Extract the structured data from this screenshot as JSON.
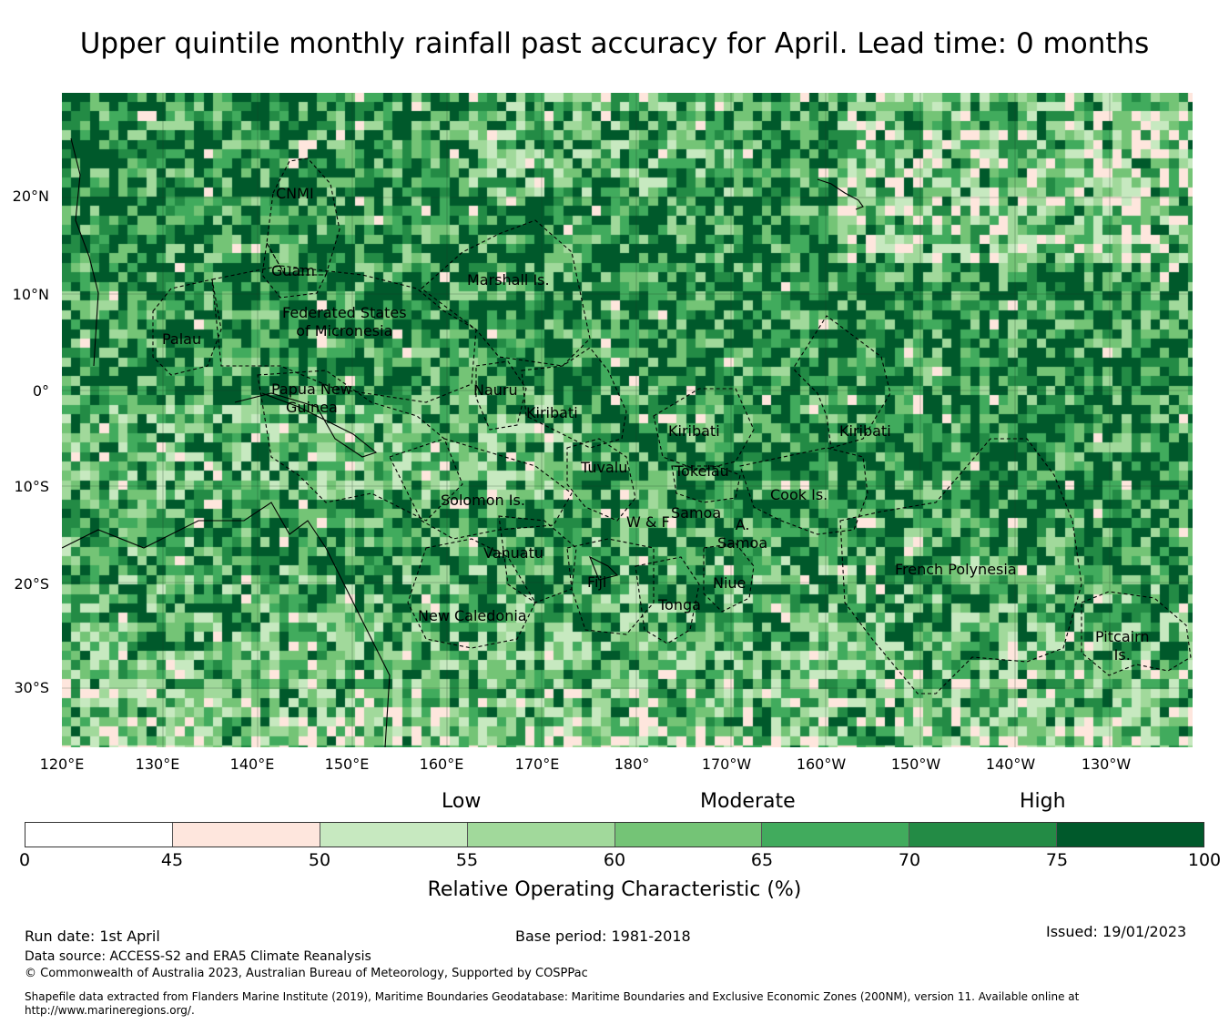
{
  "title": "Upper quintile monthly rainfall past accuracy for April. Lead time: 0 months",
  "map": {
    "lat_labels": [
      "20°N",
      "10°N",
      "0°",
      "10°S",
      "20°S",
      "30°S"
    ],
    "lon_labels": [
      "120°E",
      "130°E",
      "140°E",
      "150°E",
      "160°E",
      "170°E",
      "180°",
      "170°W",
      "160°W",
      "150°W",
      "140°W",
      "130°W"
    ],
    "regions": [
      "CNMI",
      "Guam",
      "Marshall Is.",
      "Federated States\nof Micronesia",
      "Palau",
      "Papua New\nGuinea",
      "Nauru",
      "Kiribati",
      "Kiribati",
      "Kiribati",
      "Tuvalu",
      "Tokelau",
      "Cook Is.",
      "Solomon Is.",
      "W & F",
      "Samoa",
      "A.\nSamoa",
      "Vanuatu",
      "Fiji",
      "Niue",
      "Tonga",
      "New Caledonia",
      "French Polynesia",
      "Pitcairn\nIs."
    ]
  },
  "legend": {
    "categories": [
      "Low",
      "Moderate",
      "High"
    ],
    "ticks": [
      "0",
      "45",
      "50",
      "55",
      "60",
      "65",
      "70",
      "75",
      "100"
    ],
    "colors": [
      "#ffffff",
      "#fee6dd",
      "#c7e9c0",
      "#a1d99b",
      "#74c476",
      "#41ab5d",
      "#238b45",
      "#00592b"
    ],
    "label": "Relative Operating Characteristic (%)"
  },
  "footer": {
    "run_date": "Run date: 1st April",
    "base_period": "Base period: 1981-2018",
    "issued": "Issued: 19/01/2023",
    "data_source": "Data source: ACCESS-S2 and ERA5 Climate Reanalysis",
    "copyright": "© Commonwealth of Australia 2023, Australian Bureau of Meteorology, Supported by COSPPac",
    "shapefile": "Shapefile data extracted from Flanders Marine Institute (2019), Maritime Boundaries Geodatabase: Maritime Boundaries and Exclusive Economic Zones (200NM), version 11. Available online at",
    "url": "http://www.marineregions.org/."
  }
}
